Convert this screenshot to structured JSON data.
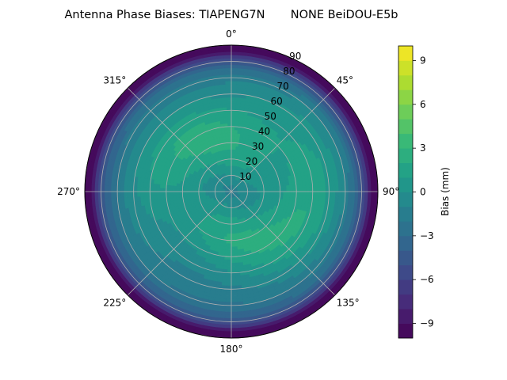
{
  "chart_data": {
    "type": "polar-contour",
    "title": "Antenna Phase Biases: TIAPENG7N       NONE BeiDOU-E5b",
    "theta_direction": "clockwise",
    "theta_zero": "top",
    "theta_tick_labels": [
      "0°",
      "45°",
      "90°",
      "135°",
      "180°",
      "225°",
      "270°",
      "315°"
    ],
    "theta_ticks_deg": [
      0,
      45,
      90,
      135,
      180,
      225,
      270,
      315
    ],
    "radial_tick_labels": [
      "10",
      "20",
      "30",
      "40",
      "50",
      "60",
      "70",
      "80",
      "90"
    ],
    "radial_ticks": [
      10,
      20,
      30,
      40,
      50,
      60,
      70,
      80,
      90
    ],
    "rlim": [
      0,
      90
    ],
    "grid": true,
    "colormap": "viridis",
    "colorbar": {
      "label": "Bias (mm)",
      "vmin": -10,
      "vmax": 10,
      "levels": 20,
      "tick_values": [
        -9,
        -6,
        -3,
        0,
        3,
        6,
        9
      ],
      "tick_labels": [
        "−9",
        "−6",
        "−3",
        "0",
        "3",
        "6",
        "9"
      ]
    },
    "field_description_values_mm": {
      "center": -1.5,
      "mid_ring": 1.5,
      "outer_edge": -7,
      "peak_northeast": 3
    }
  },
  "colors": {
    "viridis": [
      "#440154",
      "#482878",
      "#3e4989",
      "#31688e",
      "#26828e",
      "#1f9e89",
      "#35b779",
      "#6ece58",
      "#b5de2b",
      "#fde725"
    ],
    "grid": "#b0b0b0",
    "frame": "#000000"
  }
}
